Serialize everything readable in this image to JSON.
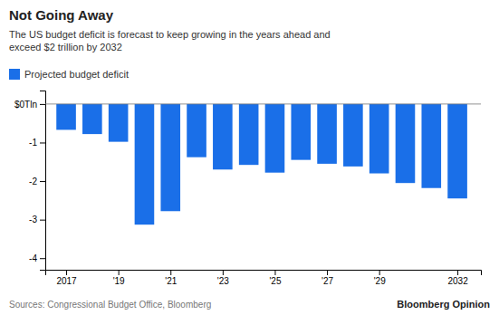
{
  "chart_data": {
    "type": "bar",
    "title": "Not Going Away",
    "subtitle": "The US budget deficit is forecast to keep growing in the years ahead and\nexceed $2 trillion by 2032",
    "annotations": [
      "Sources: Congressional Budget Office, Bloomberg",
      "Bloomberg Opinion"
    ],
    "x": [
      2017,
      2018,
      2019,
      2020,
      2021,
      2022,
      2023,
      2024,
      2025,
      2026,
      2027,
      2028,
      2029,
      2030,
      2031,
      2032
    ],
    "series": [
      {
        "name": "Projected budget deficit",
        "color": "#1a6fe8",
        "values": [
          -0.67,
          -0.78,
          -0.98,
          -3.13,
          -2.78,
          -1.38,
          -1.7,
          -1.58,
          -1.78,
          -1.45,
          -1.55,
          -1.62,
          -1.8,
          -2.05,
          -2.18,
          -2.45
        ]
      }
    ],
    "xlim": [
      2016.2,
      2032.9
    ],
    "xticks": [
      2017,
      {
        "value": 2019,
        "label": "'19"
      },
      {
        "value": 2021,
        "label": "'21"
      },
      {
        "value": 2023,
        "label": "'23"
      },
      {
        "value": 2025,
        "label": "'25"
      },
      {
        "value": 2027,
        "label": "'27"
      },
      {
        "value": 2029,
        "label": "'29"
      },
      2032
    ],
    "ylim": [
      -4.3,
      0.35
    ],
    "yticks": [
      {
        "value": 0,
        "label": "$0Tln"
      },
      -1,
      -2,
      -3,
      -4
    ],
    "legend": "top-left",
    "grid": false
  }
}
